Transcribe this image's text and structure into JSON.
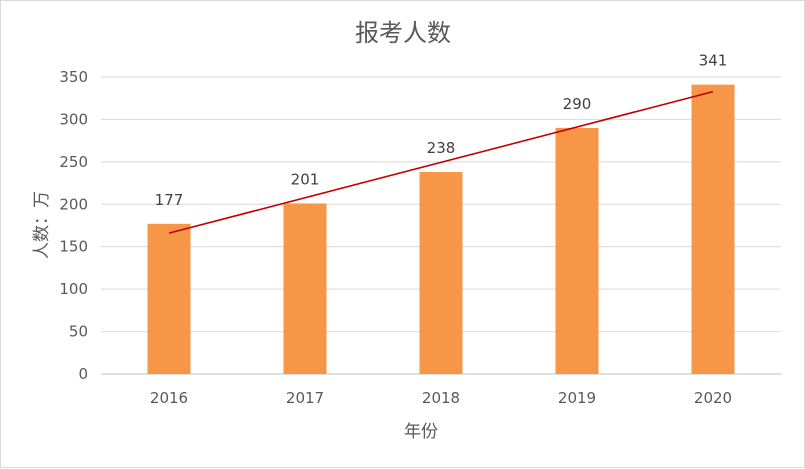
{
  "chart_data": {
    "type": "bar",
    "title": "报考人数",
    "xlabel": "年份",
    "ylabel": "人数：万",
    "categories": [
      "2016",
      "2017",
      "2018",
      "2019",
      "2020"
    ],
    "values": [
      177,
      201,
      238,
      290,
      341
    ],
    "ylim": [
      0,
      350
    ],
    "yticks": [
      0,
      50,
      100,
      150,
      200,
      250,
      300,
      350
    ],
    "grid": true,
    "legend": "none",
    "trendline": "linear",
    "colors": {
      "bar": "#f79646",
      "trend": "#c00000"
    }
  }
}
